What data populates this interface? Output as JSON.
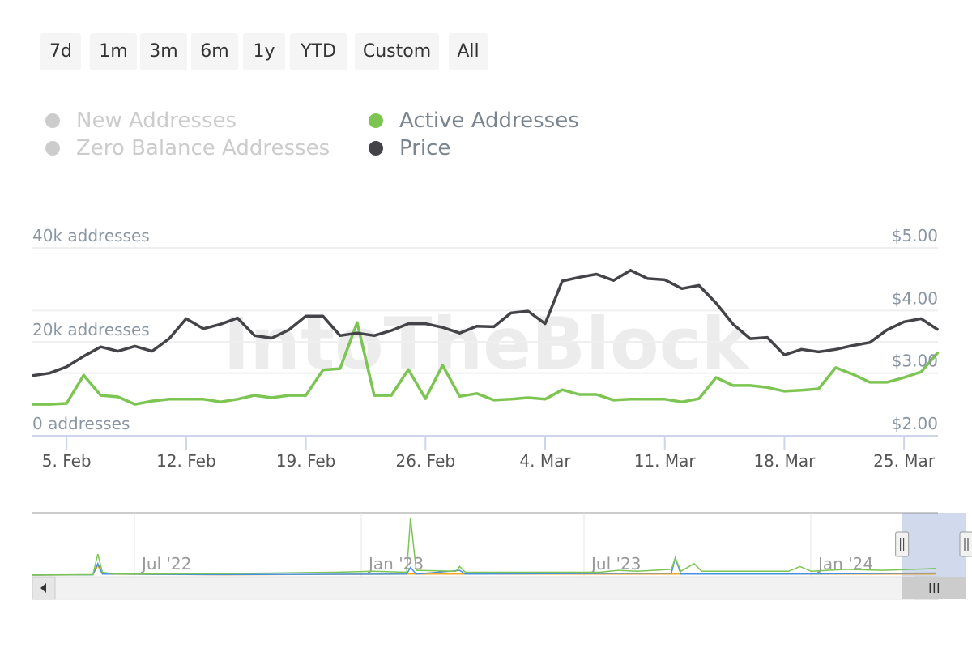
{
  "range_buttons": [
    "7d",
    "1m",
    "3m",
    "6m",
    "1y",
    "YTD",
    "Custom",
    "All"
  ],
  "legend": [
    {
      "label": "New Addresses",
      "visible": false,
      "color": "#cccccc"
    },
    {
      "label": "Zero Balance Addresses",
      "visible": false,
      "color": "#cccccc"
    },
    {
      "label": "Active Addresses",
      "visible": true,
      "color": "#7cc552"
    },
    {
      "label": "Price",
      "visible": true,
      "color": "#434348"
    }
  ],
  "watermark": "IntoTheBlock",
  "chart_data": {
    "type": "line",
    "x_start": "2024-02-03",
    "x_step": "1 day",
    "x_ticks": [
      "5. Feb",
      "12. Feb",
      "19. Feb",
      "26. Feb",
      "4. Mar",
      "11. Mar",
      "18. Mar",
      "25. Mar"
    ],
    "y_left": {
      "label_ticks": [
        "0 addresses",
        "20k addresses",
        "40k addresses"
      ],
      "range": [
        0,
        40000
      ]
    },
    "y_right": {
      "label_ticks": [
        "$2.00",
        "$3.00",
        "$4.00",
        "$5.00"
      ],
      "range": [
        2,
        5
      ]
    },
    "series": [
      {
        "name": "Active Addresses",
        "axis": "left",
        "color": "#7cc552",
        "values": [
          6700,
          6700,
          6900,
          12900,
          8600,
          8300,
          6700,
          7400,
          7800,
          7800,
          7800,
          7200,
          7800,
          8600,
          8100,
          8600,
          8600,
          14000,
          14300,
          24100,
          8600,
          8600,
          14100,
          7900,
          15000,
          8400,
          9000,
          7600,
          7800,
          8100,
          7800,
          9800,
          8800,
          8800,
          7600,
          7800,
          7800,
          7800,
          7200,
          7900,
          12400,
          10700,
          10700,
          10300,
          9500,
          9700,
          10000,
          14500,
          13100,
          11400,
          11400,
          12400,
          13600,
          17800
        ]
      },
      {
        "name": "Price",
        "axis": "right",
        "color": "#434348",
        "values": [
          2.96,
          3.0,
          3.1,
          3.27,
          3.42,
          3.35,
          3.43,
          3.35,
          3.55,
          3.87,
          3.71,
          3.78,
          3.88,
          3.6,
          3.56,
          3.69,
          3.91,
          3.91,
          3.6,
          3.64,
          3.6,
          3.68,
          3.79,
          3.79,
          3.73,
          3.64,
          3.75,
          3.74,
          3.96,
          3.99,
          3.79,
          4.47,
          4.53,
          4.58,
          4.48,
          4.64,
          4.51,
          4.49,
          4.35,
          4.4,
          4.12,
          3.78,
          3.55,
          3.57,
          3.29,
          3.38,
          3.34,
          3.38,
          3.44,
          3.49,
          3.69,
          3.82,
          3.87,
          3.69
        ]
      }
    ],
    "navigator": {
      "x_ticks": [
        "Jul '22",
        "Jan '23",
        "Jul '23",
        "Jan '24"
      ],
      "series": [
        {
          "name": "Active Addresses",
          "color": "#7cc552",
          "points": [
            [
              0,
              0
            ],
            [
              1.6,
              0.5
            ],
            [
              1.73,
              22
            ],
            [
              1.85,
              3
            ],
            [
              2.2,
              1
            ],
            [
              5,
              1.5
            ],
            [
              8,
              3
            ],
            [
              9,
              4
            ],
            [
              9.9,
              3
            ],
            [
              10,
              60
            ],
            [
              10.15,
              5
            ],
            [
              11.2,
              4
            ],
            [
              11.3,
              9
            ],
            [
              11.45,
              3
            ],
            [
              15,
              3
            ],
            [
              15.5,
              5
            ],
            [
              16,
              4
            ],
            [
              16.9,
              6
            ],
            [
              17.0,
              18
            ],
            [
              17.15,
              4
            ],
            [
              17.5,
              12
            ],
            [
              17.7,
              4
            ],
            [
              20,
              4
            ],
            [
              20.3,
              9
            ],
            [
              20.6,
              4
            ],
            [
              21.5,
              6
            ],
            [
              22.5,
              5
            ],
            [
              23.3,
              6
            ],
            [
              23.9,
              7
            ]
          ]
        },
        {
          "name": "New Addresses",
          "color": "#4a90e2",
          "points": [
            [
              0,
              0
            ],
            [
              1.6,
              0.3
            ],
            [
              1.73,
              12
            ],
            [
              1.85,
              1
            ],
            [
              5,
              0.5
            ],
            [
              9.9,
              1
            ],
            [
              10,
              8
            ],
            [
              10.15,
              1
            ],
            [
              11.3,
              5
            ],
            [
              11.45,
              1
            ],
            [
              16.9,
              2
            ],
            [
              17.0,
              18
            ],
            [
              17.15,
              1
            ],
            [
              20,
              1
            ],
            [
              23.9,
              2
            ]
          ]
        },
        {
          "name": "Zero Balance Addresses",
          "color": "#f5a623",
          "points": [
            [
              0,
              0
            ],
            [
              1.6,
              0.3
            ],
            [
              1.73,
              10
            ],
            [
              1.85,
              1
            ],
            [
              5,
              0.3
            ],
            [
              10,
              1
            ],
            [
              17,
              1
            ],
            [
              23.9,
              1
            ]
          ]
        }
      ],
      "max": 60,
      "selection_months": [
        23.0,
        24.7
      ],
      "total_months": 23.95
    }
  }
}
